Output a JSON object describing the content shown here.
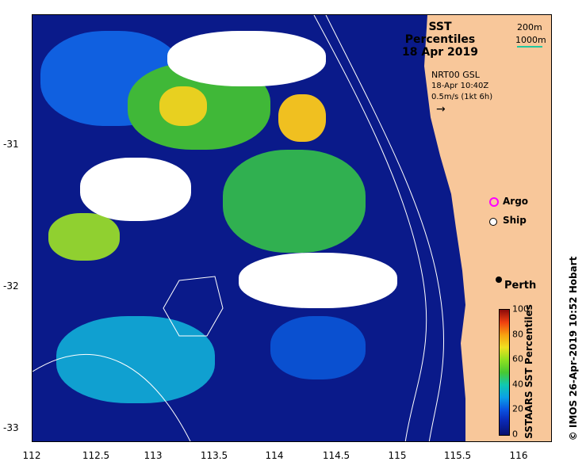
{
  "map": {
    "title_line1": "SST Percentiles",
    "title_line2": "18 Apr 2019",
    "contour_200": "200m",
    "contour_1000": "1000m",
    "current_source": "NRT00 GSL",
    "current_time": "18-Apr 10:40Z",
    "current_scale": "0.5m/s (1kt 6h)",
    "argo_label": "Argo",
    "ship_label": "Ship",
    "city_label": "Perth",
    "colorbar_title": "SSTAARS SST Percentiles",
    "colorbar_ticks": [
      "100",
      "80",
      "60",
      "40",
      "20",
      "0"
    ],
    "credit": "© IMOS 26-Apr-2019 10:52 Hobart",
    "x_ticks": [
      "112",
      "112.5",
      "113",
      "113.5",
      "114",
      "114.5",
      "115",
      "115.5",
      "116"
    ],
    "y_ticks": [
      "-31",
      "-32",
      "-33"
    ],
    "colors": {
      "land": "#f8c79a",
      "ocean_low": "#0a1a8a",
      "contour_1000": "#22c7a0",
      "argo": "#ff00ff"
    }
  }
}
